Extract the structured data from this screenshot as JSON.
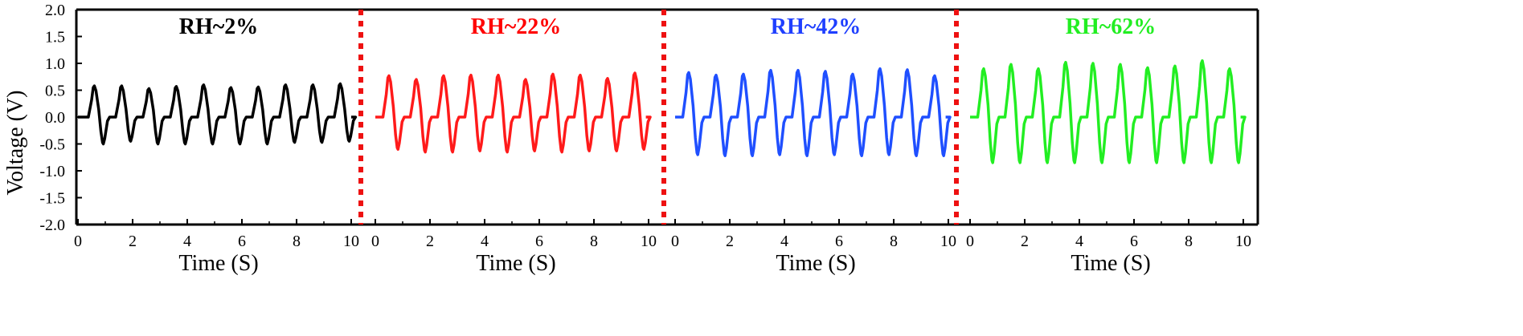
{
  "chart_data": {
    "type": "line",
    "ylabel": "Voltage (V)",
    "ylim": [
      -2.0,
      2.0
    ],
    "y_ticks": [
      "2.0",
      "1.5",
      "1.0",
      "0.5",
      "0.0",
      "-0.5",
      "-1.0",
      "-1.5",
      "-2.0"
    ],
    "x_ticks": [
      "0",
      "2",
      "4",
      "6",
      "8",
      "10"
    ],
    "panels": [
      {
        "title": "RH~2%",
        "xlabel": "Time (S)",
        "xlim": [
          0,
          10
        ],
        "color": "#000000",
        "series": [
          {
            "color": "#000000",
            "peak_times": [
              0.6,
              1.6,
              2.6,
              3.6,
              4.6,
              5.6,
              6.6,
              7.6,
              8.6,
              9.6
            ],
            "peak_values": [
              0.58,
              0.58,
              0.53,
              0.57,
              0.6,
              0.55,
              0.56,
              0.6,
              0.6,
              0.62
            ],
            "trough_values": [
              -0.5,
              -0.45,
              -0.5,
              -0.5,
              -0.5,
              -0.5,
              -0.5,
              -0.47,
              -0.47,
              -0.45
            ]
          }
        ]
      },
      {
        "title": "RH~22%",
        "xlabel": "Time (S)",
        "xlim": [
          0,
          10
        ],
        "color": "#ff0000",
        "series": [
          {
            "color": "#ff1a1a",
            "peak_times": [
              0.5,
              1.5,
              2.5,
              3.5,
              4.5,
              5.5,
              6.5,
              7.5,
              8.5,
              9.5
            ],
            "peak_values": [
              0.77,
              0.7,
              0.77,
              0.78,
              0.78,
              0.7,
              0.8,
              0.78,
              0.72,
              0.82
            ],
            "trough_values": [
              -0.6,
              -0.65,
              -0.65,
              -0.63,
              -0.65,
              -0.63,
              -0.65,
              -0.63,
              -0.63,
              -0.6
            ]
          }
        ]
      },
      {
        "title": "RH~42%",
        "xlabel": "Time (S)",
        "xlim": [
          0,
          10
        ],
        "color": "#1f3fff",
        "series": [
          {
            "color": "#1f4fff",
            "peak_times": [
              0.5,
              1.5,
              2.5,
              3.5,
              4.5,
              5.5,
              6.5,
              7.5,
              8.5,
              9.5
            ],
            "peak_values": [
              0.83,
              0.78,
              0.8,
              0.87,
              0.87,
              0.85,
              0.8,
              0.9,
              0.88,
              0.77
            ],
            "trough_values": [
              -0.7,
              -0.72,
              -0.72,
              -0.7,
              -0.72,
              -0.7,
              -0.72,
              -0.7,
              -0.72,
              -0.72
            ]
          }
        ]
      },
      {
        "title": "RH~62%",
        "xlabel": "Time (S)",
        "xlim": [
          0,
          10
        ],
        "color": "#22ee22",
        "series": [
          {
            "color": "#22ee22",
            "peak_times": [
              0.5,
              1.5,
              2.5,
              3.5,
              4.5,
              5.5,
              6.5,
              7.5,
              8.5,
              9.5
            ],
            "peak_values": [
              0.9,
              0.98,
              0.9,
              1.02,
              1.0,
              0.98,
              0.92,
              0.95,
              1.05,
              0.9
            ],
            "trough_values": [
              -0.85,
              -0.85,
              -0.85,
              -0.85,
              -0.85,
              -0.85,
              -0.85,
              -0.85,
              -0.85,
              -0.85
            ]
          }
        ]
      }
    ]
  }
}
